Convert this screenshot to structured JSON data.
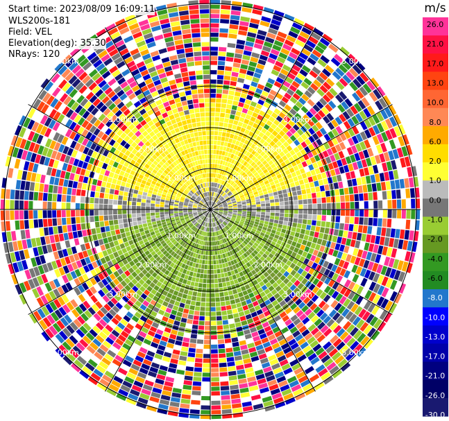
{
  "header": {
    "start_time": "Start time: 2023/08/09 16:09:11",
    "site": "WLS200s-181",
    "field": "Field: VEL",
    "elevation": "Elevation(deg): 35.30",
    "nrays": "NRays: 120"
  },
  "chart_data": {
    "type": "heatmap",
    "projection": "polar-ppi",
    "field": "VEL",
    "unit": "m/s",
    "colorbar": {
      "title": "m/s",
      "ticks": [
        "26.0",
        "21.0",
        "17.0",
        "13.0",
        "10.0",
        "8.0",
        "6.0",
        "2.0",
        "1.0",
        "0.0",
        "-1.0",
        "-2.0",
        "-4.0",
        "-6.0",
        "-8.0",
        "-10.0",
        "-13.0",
        "-17.0",
        "-21.0",
        "-26.0",
        "-30.0"
      ],
      "colors": [
        "#ff3399",
        "#ff1144",
        "#ff1a1a",
        "#ff4411",
        "#ff6633",
        "#ff8855",
        "#ffaa00",
        "#ffdd00",
        "#ffff33",
        "#bbbbbb",
        "#777777",
        "#99cc33",
        "#669922",
        "#339922",
        "#228b22",
        "#2277cc",
        "#0000ff",
        "#0000cc",
        "#0000aa",
        "#000080",
        "#000066",
        "#191970"
      ]
    },
    "range_rings_km": [
      1.0,
      2.0,
      3.0,
      5.0
    ],
    "ring_labels": [
      "1.00km",
      "2.00km",
      "3.00km",
      "5.00km"
    ],
    "azimuth_spokes_deg": [
      0,
      30,
      60,
      90,
      120,
      150,
      180,
      210,
      240,
      270,
      300,
      330
    ],
    "pattern": {
      "near_field": "positive velocities (yellow, ~2 m/s) north of the center, negative (green, ~-2 to -4 m/s) south, near zero (grey) across the middle",
      "far_field": "noisy multicolor returns beyond roughly 2.6 km"
    }
  }
}
